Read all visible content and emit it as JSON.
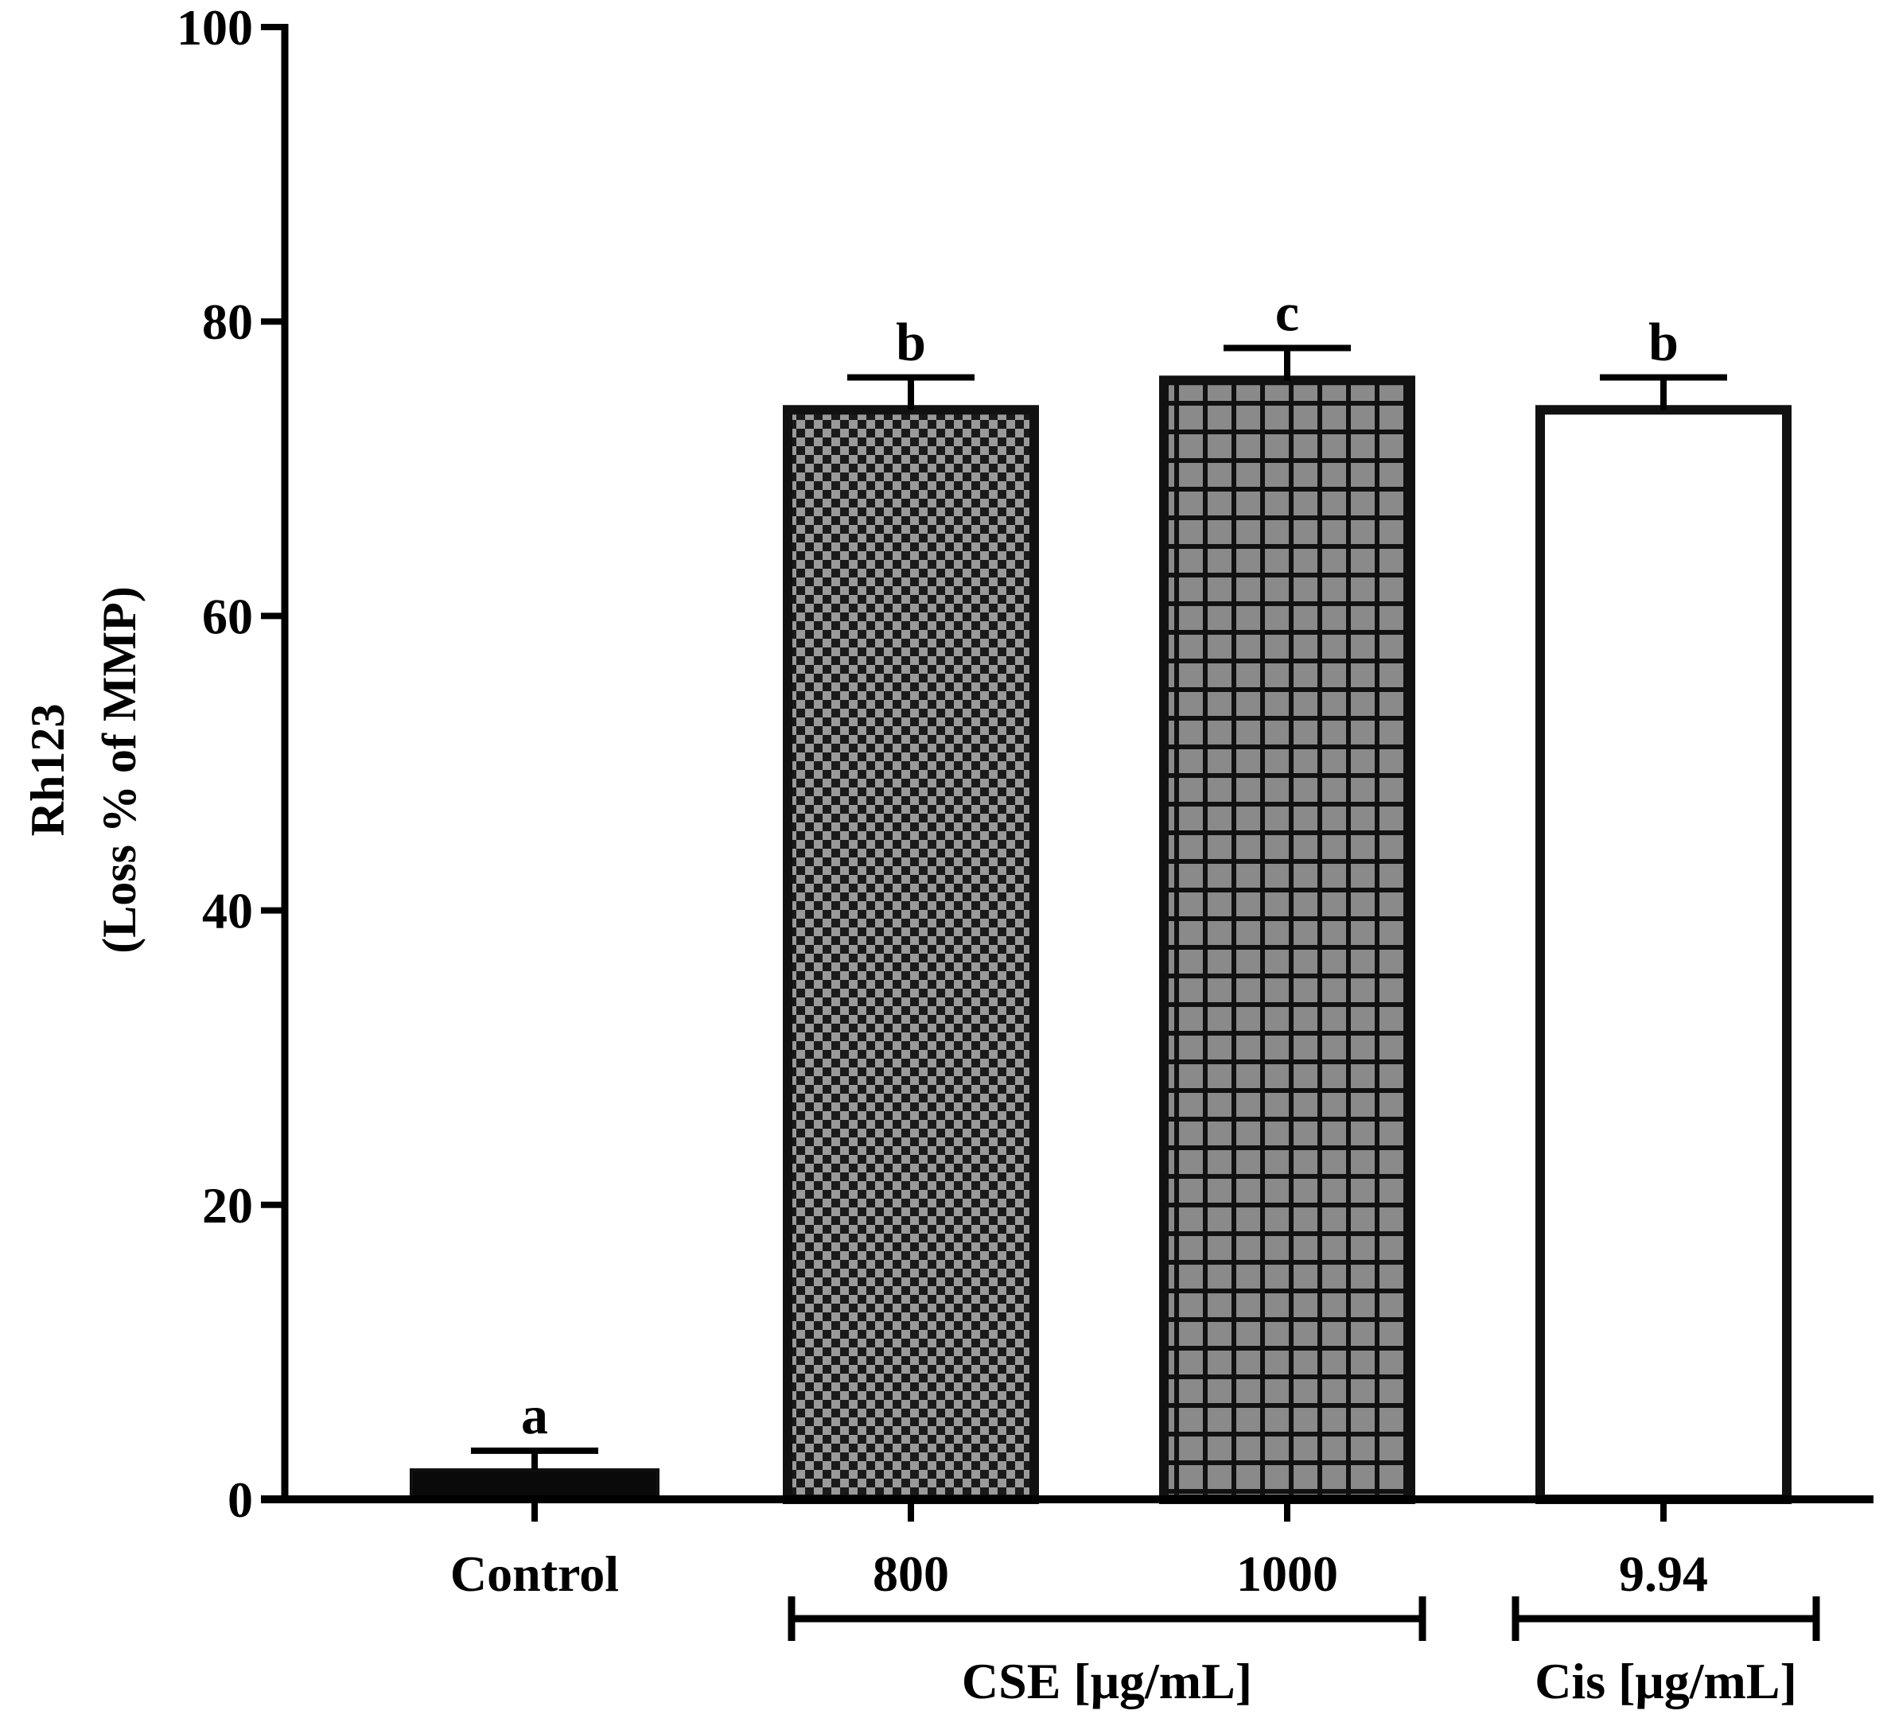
{
  "chart_data": {
    "type": "bar",
    "title": "",
    "ylabel_line1": "Rh123",
    "ylabel_line2": "(Loss % of MMP)",
    "xlabel": "",
    "ylim": [
      0,
      100
    ],
    "yticks": [
      0,
      20,
      40,
      60,
      80,
      100
    ],
    "categories": [
      "Control",
      "800",
      "1000",
      "9.94"
    ],
    "values": [
      2,
      74,
      76,
      74
    ],
    "errors": [
      1.3,
      2.2,
      2.2,
      2.2
    ],
    "significance": [
      "a",
      "b",
      "c",
      "b"
    ],
    "patterns": [
      "solid-black",
      "checker",
      "grid",
      "white"
    ],
    "groups": [
      {
        "label": "CSE [μg/mL]",
        "members": [
          "800",
          "1000"
        ]
      },
      {
        "label": "Cis [μg/mL]",
        "members": [
          "9.94"
        ]
      }
    ],
    "colors": {
      "axis": "#000000",
      "checker_light": "#9a9a9a",
      "grid_fill": "#8a8a8a",
      "bar_stroke": "#111111"
    }
  }
}
